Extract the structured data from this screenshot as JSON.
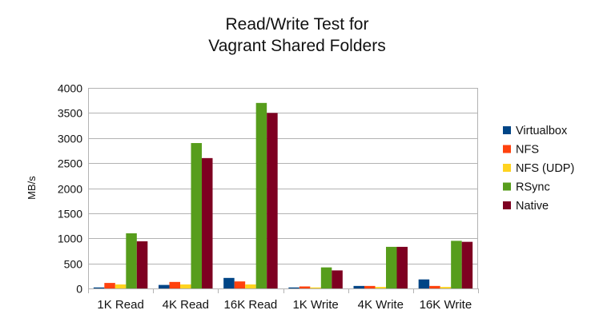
{
  "chart_data": {
    "type": "bar",
    "title_lines": [
      "Read/Write Test for",
      "Vagrant Shared Folders"
    ],
    "xlabel": "",
    "ylabel": "MB/s",
    "ylim": [
      0,
      4000
    ],
    "y_ticks": [
      0,
      500,
      1000,
      1500,
      2000,
      2500,
      3000,
      3500,
      4000
    ],
    "grid": true,
    "legend_position": "right",
    "categories": [
      "1K Read",
      "4K Read",
      "16K Read",
      "1K Write",
      "4K Write",
      "16K Write"
    ],
    "series": [
      {
        "name": "Virtualbox",
        "color": "#004586",
        "values": [
          20,
          70,
          210,
          20,
          50,
          180
        ]
      },
      {
        "name": "NFS",
        "color": "#ff420e",
        "values": [
          110,
          130,
          140,
          40,
          50,
          50
        ]
      },
      {
        "name": "NFS  (UDP)",
        "color": "#ffd320",
        "values": [
          80,
          80,
          80,
          20,
          30,
          30
        ]
      },
      {
        "name": "RSync",
        "color": "#579d1c",
        "values": [
          1100,
          2900,
          3700,
          420,
          830,
          950
        ]
      },
      {
        "name": "Native",
        "color": "#7e0021",
        "values": [
          940,
          2600,
          3500,
          360,
          830,
          930
        ]
      }
    ]
  }
}
